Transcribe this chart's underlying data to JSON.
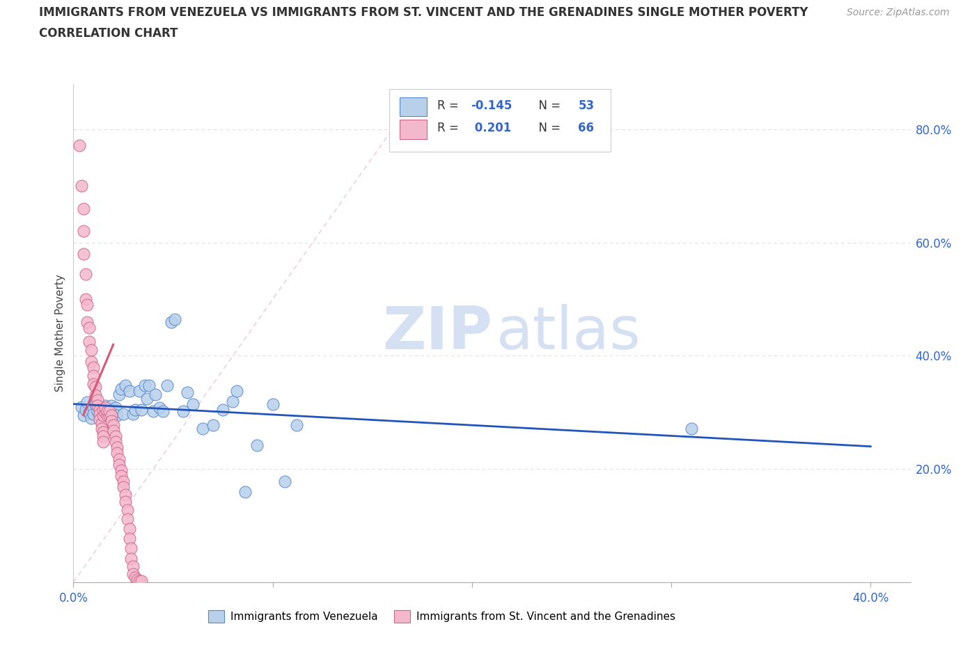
{
  "title_line1": "IMMIGRANTS FROM VENEZUELA VS IMMIGRANTS FROM ST. VINCENT AND THE GRENADINES SINGLE MOTHER POVERTY",
  "title_line2": "CORRELATION CHART",
  "source": "Source: ZipAtlas.com",
  "ylabel": "Single Mother Poverty",
  "xlim": [
    0.0,
    0.42
  ],
  "ylim": [
    0.0,
    0.88
  ],
  "color_blue": "#b8d0ea",
  "color_pink": "#f4b8cc",
  "edge_blue": "#5588cc",
  "edge_pink": "#cc6688",
  "line_blue": "#2255bb",
  "line_pink": "#dd5577",
  "diag_color": "#e0b8c8",
  "grid_color": "#dddddd",
  "text_color_blue": "#3366cc",
  "title_color": "#333333",
  "watermark_color": "#c8d8ee",
  "blue_pts": [
    [
      0.004,
      0.31
    ],
    [
      0.005,
      0.295
    ],
    [
      0.006,
      0.305
    ],
    [
      0.007,
      0.318
    ],
    [
      0.008,
      0.3
    ],
    [
      0.009,
      0.29
    ],
    [
      0.01,
      0.308
    ],
    [
      0.01,
      0.298
    ],
    [
      0.011,
      0.315
    ],
    [
      0.012,
      0.302
    ],
    [
      0.013,
      0.295
    ],
    [
      0.014,
      0.308
    ],
    [
      0.015,
      0.3
    ],
    [
      0.016,
      0.312
    ],
    [
      0.017,
      0.295
    ],
    [
      0.018,
      0.305
    ],
    [
      0.019,
      0.312
    ],
    [
      0.02,
      0.298
    ],
    [
      0.021,
      0.308
    ],
    [
      0.022,
      0.295
    ],
    [
      0.023,
      0.332
    ],
    [
      0.024,
      0.342
    ],
    [
      0.025,
      0.298
    ],
    [
      0.026,
      0.348
    ],
    [
      0.028,
      0.338
    ],
    [
      0.03,
      0.298
    ],
    [
      0.031,
      0.305
    ],
    [
      0.033,
      0.338
    ],
    [
      0.034,
      0.305
    ],
    [
      0.036,
      0.348
    ],
    [
      0.037,
      0.325
    ],
    [
      0.038,
      0.348
    ],
    [
      0.04,
      0.302
    ],
    [
      0.041,
      0.332
    ],
    [
      0.043,
      0.308
    ],
    [
      0.045,
      0.302
    ],
    [
      0.047,
      0.348
    ],
    [
      0.049,
      0.46
    ],
    [
      0.051,
      0.465
    ],
    [
      0.055,
      0.302
    ],
    [
      0.057,
      0.335
    ],
    [
      0.06,
      0.315
    ],
    [
      0.065,
      0.272
    ],
    [
      0.07,
      0.278
    ],
    [
      0.075,
      0.305
    ],
    [
      0.08,
      0.32
    ],
    [
      0.082,
      0.338
    ],
    [
      0.086,
      0.16
    ],
    [
      0.092,
      0.242
    ],
    [
      0.1,
      0.315
    ],
    [
      0.106,
      0.178
    ],
    [
      0.112,
      0.278
    ],
    [
      0.31,
      0.272
    ]
  ],
  "pink_pts": [
    [
      0.003,
      0.772
    ],
    [
      0.004,
      0.7
    ],
    [
      0.005,
      0.66
    ],
    [
      0.005,
      0.62
    ],
    [
      0.005,
      0.58
    ],
    [
      0.006,
      0.545
    ],
    [
      0.006,
      0.5
    ],
    [
      0.007,
      0.49
    ],
    [
      0.007,
      0.46
    ],
    [
      0.008,
      0.45
    ],
    [
      0.008,
      0.425
    ],
    [
      0.009,
      0.41
    ],
    [
      0.009,
      0.39
    ],
    [
      0.01,
      0.38
    ],
    [
      0.01,
      0.365
    ],
    [
      0.01,
      0.35
    ],
    [
      0.011,
      0.345
    ],
    [
      0.011,
      0.33
    ],
    [
      0.012,
      0.322
    ],
    [
      0.012,
      0.312
    ],
    [
      0.013,
      0.305
    ],
    [
      0.013,
      0.298
    ],
    [
      0.013,
      0.288
    ],
    [
      0.014,
      0.28
    ],
    [
      0.014,
      0.272
    ],
    [
      0.015,
      0.265
    ],
    [
      0.015,
      0.258
    ],
    [
      0.015,
      0.248
    ],
    [
      0.015,
      0.295
    ],
    [
      0.015,
      0.305
    ],
    [
      0.016,
      0.3
    ],
    [
      0.016,
      0.308
    ],
    [
      0.017,
      0.295
    ],
    [
      0.017,
      0.302
    ],
    [
      0.018,
      0.295
    ],
    [
      0.018,
      0.302
    ],
    [
      0.019,
      0.295
    ],
    [
      0.019,
      0.285
    ],
    [
      0.02,
      0.278
    ],
    [
      0.02,
      0.268
    ],
    [
      0.021,
      0.258
    ],
    [
      0.021,
      0.248
    ],
    [
      0.022,
      0.238
    ],
    [
      0.022,
      0.228
    ],
    [
      0.023,
      0.218
    ],
    [
      0.023,
      0.208
    ],
    [
      0.024,
      0.198
    ],
    [
      0.024,
      0.188
    ],
    [
      0.025,
      0.178
    ],
    [
      0.025,
      0.168
    ],
    [
      0.026,
      0.155
    ],
    [
      0.026,
      0.142
    ],
    [
      0.027,
      0.128
    ],
    [
      0.027,
      0.112
    ],
    [
      0.028,
      0.095
    ],
    [
      0.028,
      0.078
    ],
    [
      0.029,
      0.06
    ],
    [
      0.029,
      0.042
    ],
    [
      0.03,
      0.028
    ],
    [
      0.03,
      0.015
    ],
    [
      0.031,
      0.008
    ],
    [
      0.032,
      0.005
    ],
    [
      0.033,
      0.003
    ],
    [
      0.034,
      0.002
    ]
  ],
  "blue_line_x": [
    0.0,
    0.4
  ],
  "blue_line_y": [
    0.315,
    0.24
  ],
  "pink_line_x": [
    0.005,
    0.02
  ],
  "pink_line_y": [
    0.295,
    0.42
  ],
  "diag_line_x": [
    0.0,
    0.16
  ],
  "diag_line_y": [
    0.0,
    0.8
  ]
}
